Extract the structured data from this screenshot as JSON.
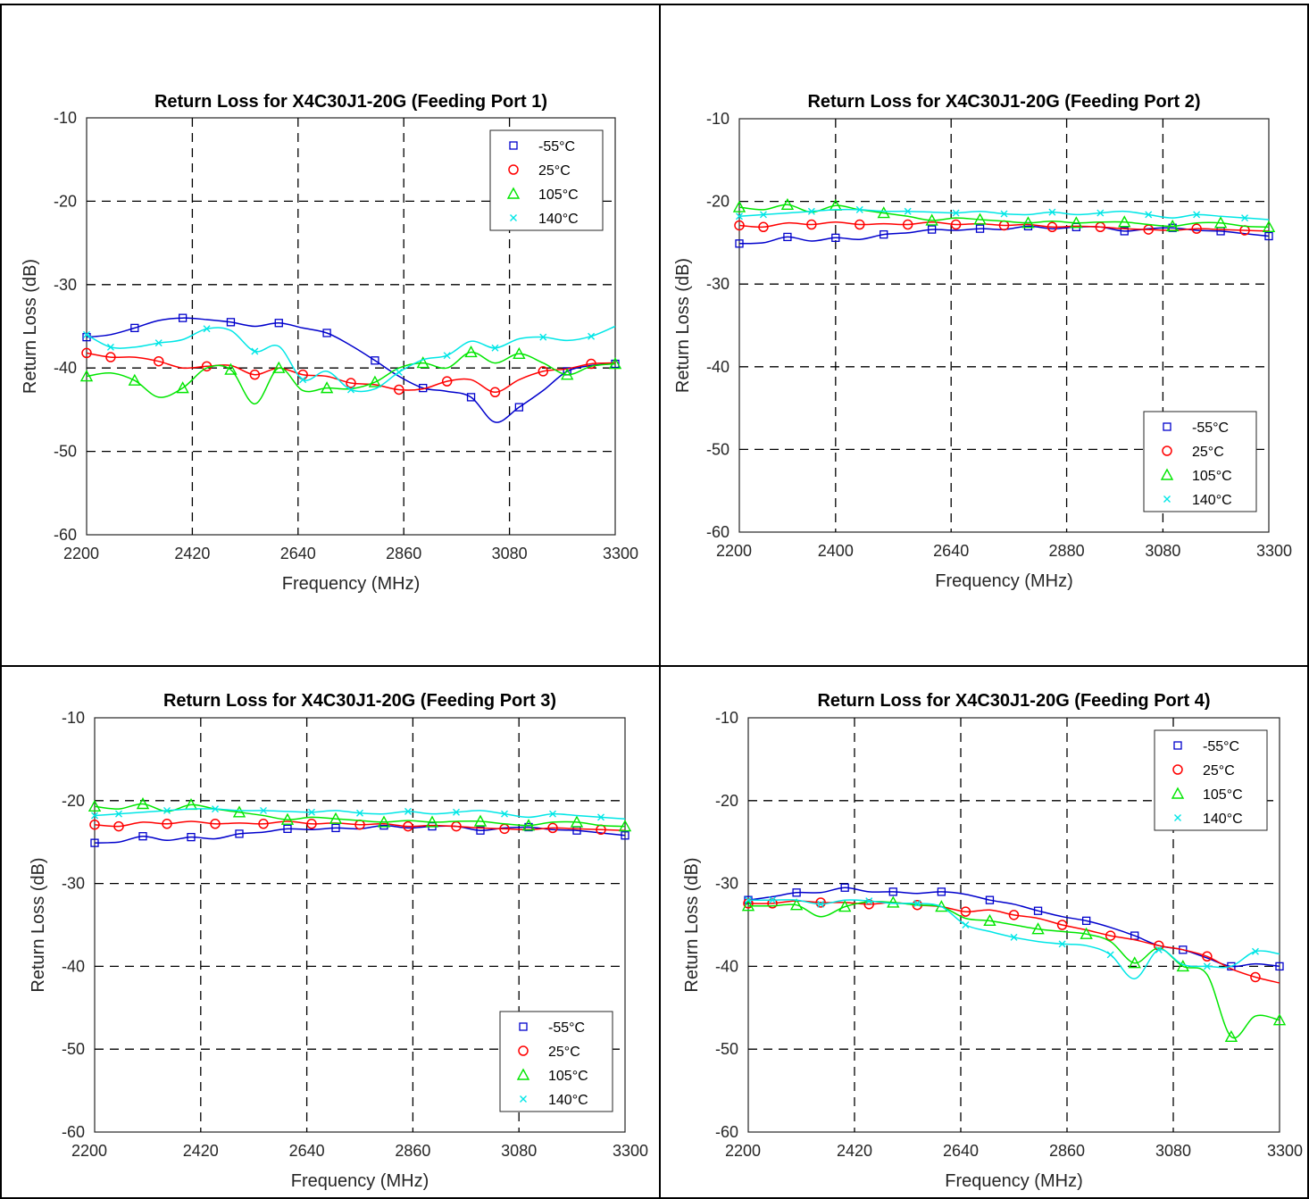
{
  "chart_data": [
    {
      "type": "line",
      "title": "Return Loss for X4C30J1-20G (Feeding Port 1)",
      "xlabel": "Frequency (MHz)",
      "ylabel": "Return Loss (dB)",
      "xlim": [
        2200,
        3300
      ],
      "ylim": [
        -60,
        -10
      ],
      "xticks": [
        2200,
        2420,
        2640,
        2860,
        3080,
        3300
      ],
      "yticks": [
        -10,
        -20,
        -30,
        -40,
        -50,
        -60
      ],
      "grid": true,
      "legend_position": "top-right",
      "x": [
        2200,
        2250,
        2300,
        2350,
        2400,
        2450,
        2500,
        2550,
        2600,
        2650,
        2700,
        2750,
        2800,
        2850,
        2900,
        2950,
        3000,
        3050,
        3100,
        3150,
        3200,
        3250,
        3300
      ],
      "series": [
        {
          "name": "-55°C",
          "color": "#0000cc",
          "marker": "square",
          "values": [
            -36.3,
            -36.0,
            -35.2,
            -34.3,
            -34.0,
            -34.2,
            -34.5,
            -35.0,
            -34.6,
            -35.2,
            -35.8,
            -37.3,
            -39.1,
            -41.0,
            -42.4,
            -42.8,
            -43.5,
            -46.5,
            -44.7,
            -42.7,
            -40.4,
            -39.7,
            -39.5
          ]
        },
        {
          "name": "25°C",
          "color": "#ff0000",
          "marker": "circle",
          "values": [
            -38.2,
            -38.7,
            -38.7,
            -39.2,
            -40.0,
            -39.8,
            -39.7,
            -40.8,
            -40.0,
            -40.8,
            -41.0,
            -41.8,
            -42.0,
            -42.6,
            -42.5,
            -41.6,
            -41.4,
            -42.9,
            -41.4,
            -40.4,
            -40.1,
            -39.5,
            -39.4
          ]
        },
        {
          "name": "105°C",
          "color": "#00e600",
          "marker": "triangle",
          "values": [
            -41.0,
            -40.6,
            -41.5,
            -43.5,
            -42.4,
            -40.0,
            -40.2,
            -44.3,
            -40.0,
            -42.7,
            -42.4,
            -42.5,
            -41.7,
            -40.0,
            -39.4,
            -40.0,
            -38.1,
            -39.4,
            -38.3,
            -39.4,
            -40.8,
            -39.8,
            -39.5
          ]
        },
        {
          "name": "140°C",
          "color": "#00e6e6",
          "marker": "x",
          "values": [
            -36.0,
            -37.5,
            -37.5,
            -37.0,
            -36.6,
            -35.3,
            -35.5,
            -38.0,
            -37.4,
            -41.4,
            -40.4,
            -42.6,
            -42.5,
            -40.5,
            -39.0,
            -38.5,
            -36.8,
            -37.6,
            -36.5,
            -36.3,
            -36.7,
            -36.2,
            -35.0
          ]
        }
      ]
    },
    {
      "type": "line",
      "title": "Return Loss for X4C30J1-20G (Feeding Port 2)",
      "xlabel": "Frequency (MHz)",
      "ylabel": "Return Loss (dB)",
      "xlim": [
        2200,
        3300
      ],
      "ylim": [
        -60,
        -10
      ],
      "xticks": [
        2200,
        2400,
        2640,
        2880,
        3080,
        3300
      ],
      "yticks": [
        -10,
        -20,
        -30,
        -40,
        -50,
        -60
      ],
      "grid": true,
      "legend_position": "bottom-right",
      "x": [
        2200,
        2250,
        2300,
        2350,
        2400,
        2450,
        2500,
        2550,
        2600,
        2650,
        2700,
        2750,
        2800,
        2850,
        2900,
        2950,
        3000,
        3050,
        3100,
        3150,
        3200,
        3250,
        3300
      ],
      "series": [
        {
          "name": "-55°C",
          "color": "#0000cc",
          "marker": "square",
          "values": [
            -25.1,
            -25.0,
            -24.3,
            -24.8,
            -24.4,
            -24.6,
            -24.0,
            -23.8,
            -23.4,
            -23.5,
            -23.3,
            -23.4,
            -23.0,
            -23.3,
            -23.1,
            -23.1,
            -23.6,
            -23.3,
            -23.2,
            -23.5,
            -23.6,
            -23.9,
            -24.2
          ]
        },
        {
          "name": "25°C",
          "color": "#ff0000",
          "marker": "circle",
          "values": [
            -22.9,
            -23.1,
            -22.6,
            -22.8,
            -22.5,
            -22.8,
            -22.7,
            -22.8,
            -22.5,
            -22.8,
            -22.7,
            -22.9,
            -22.8,
            -23.1,
            -23.0,
            -23.1,
            -23.3,
            -23.4,
            -23.5,
            -23.3,
            -23.4,
            -23.5,
            -23.6
          ]
        },
        {
          "name": "105°C",
          "color": "#00e600",
          "marker": "triangle",
          "values": [
            -20.7,
            -21.0,
            -20.4,
            -21.3,
            -20.5,
            -21.0,
            -21.4,
            -21.8,
            -22.3,
            -22.0,
            -22.2,
            -22.4,
            -22.6,
            -22.4,
            -22.6,
            -22.5,
            -22.5,
            -22.8,
            -23.0,
            -22.6,
            -22.6,
            -23.0,
            -23.1
          ]
        },
        {
          "name": "140°C",
          "color": "#00e6e6",
          "marker": "x",
          "values": [
            -21.8,
            -21.6,
            -21.4,
            -21.2,
            -21.0,
            -21.0,
            -21.2,
            -21.2,
            -21.3,
            -21.4,
            -21.2,
            -21.5,
            -21.6,
            -21.3,
            -21.6,
            -21.4,
            -21.2,
            -21.6,
            -22.0,
            -21.6,
            -21.8,
            -22.0,
            -22.2
          ]
        }
      ]
    },
    {
      "type": "line",
      "title": "Return Loss for X4C30J1-20G (Feeding Port 3)",
      "xlabel": "Frequency (MHz)",
      "ylabel": "Return Loss (dB)",
      "xlim": [
        2200,
        3300
      ],
      "ylim": [
        -60,
        -10
      ],
      "xticks": [
        2200,
        2420,
        2640,
        2860,
        3080,
        3300
      ],
      "yticks": [
        -10,
        -20,
        -30,
        -40,
        -50,
        -60
      ],
      "grid": true,
      "legend_position": "bottom-right",
      "x": [
        2200,
        2250,
        2300,
        2350,
        2400,
        2450,
        2500,
        2550,
        2600,
        2650,
        2700,
        2750,
        2800,
        2850,
        2900,
        2950,
        3000,
        3050,
        3100,
        3150,
        3200,
        3250,
        3300
      ],
      "series": [
        {
          "name": "-55°C",
          "color": "#0000cc",
          "marker": "square",
          "values": [
            -25.1,
            -25.0,
            -24.3,
            -24.8,
            -24.4,
            -24.6,
            -24.0,
            -23.8,
            -23.4,
            -23.5,
            -23.3,
            -23.4,
            -23.0,
            -23.3,
            -23.1,
            -23.1,
            -23.6,
            -23.3,
            -23.2,
            -23.5,
            -23.6,
            -23.9,
            -24.2
          ]
        },
        {
          "name": "25°C",
          "color": "#ff0000",
          "marker": "circle",
          "values": [
            -22.9,
            -23.1,
            -22.6,
            -22.8,
            -22.5,
            -22.8,
            -22.7,
            -22.8,
            -22.5,
            -22.8,
            -22.7,
            -22.9,
            -22.8,
            -23.1,
            -23.0,
            -23.1,
            -23.3,
            -23.4,
            -23.5,
            -23.3,
            -23.4,
            -23.5,
            -23.6
          ]
        },
        {
          "name": "105°C",
          "color": "#00e600",
          "marker": "triangle",
          "values": [
            -20.7,
            -21.0,
            -20.4,
            -21.3,
            -20.5,
            -21.0,
            -21.4,
            -21.8,
            -22.3,
            -22.0,
            -22.2,
            -22.4,
            -22.6,
            -22.4,
            -22.6,
            -22.5,
            -22.5,
            -22.8,
            -23.0,
            -22.6,
            -22.6,
            -23.0,
            -23.1
          ]
        },
        {
          "name": "140°C",
          "color": "#00e6e6",
          "marker": "x",
          "values": [
            -21.8,
            -21.6,
            -21.4,
            -21.2,
            -21.0,
            -21.0,
            -21.2,
            -21.2,
            -21.3,
            -21.4,
            -21.2,
            -21.5,
            -21.6,
            -21.3,
            -21.6,
            -21.4,
            -21.2,
            -21.6,
            -22.0,
            -21.6,
            -21.8,
            -22.0,
            -22.2
          ]
        }
      ]
    },
    {
      "type": "line",
      "title": "Return Loss for X4C30J1-20G (Feeding Port 4)",
      "xlabel": "Frequency (MHz)",
      "ylabel": "Return Loss (dB)",
      "xlim": [
        2200,
        3300
      ],
      "ylim": [
        -60,
        -10
      ],
      "xticks": [
        2200,
        2420,
        2640,
        2860,
        3080,
        3300
      ],
      "yticks": [
        -10,
        -20,
        -30,
        -40,
        -50,
        -60
      ],
      "grid": true,
      "legend_position": "top-right",
      "x": [
        2200,
        2250,
        2300,
        2350,
        2400,
        2450,
        2500,
        2550,
        2600,
        2650,
        2700,
        2750,
        2800,
        2850,
        2900,
        2950,
        3000,
        3050,
        3100,
        3150,
        3200,
        3250,
        3300
      ],
      "series": [
        {
          "name": "-55°C",
          "color": "#0000cc",
          "marker": "square",
          "values": [
            -32.0,
            -31.6,
            -31.1,
            -31.1,
            -30.5,
            -31.0,
            -31.0,
            -31.2,
            -31.0,
            -31.3,
            -32.0,
            -32.5,
            -33.3,
            -34.0,
            -34.5,
            -35.3,
            -36.3,
            -37.5,
            -38.0,
            -39.0,
            -40.0,
            -39.7,
            -40.0
          ]
        },
        {
          "name": "25°C",
          "color": "#ff0000",
          "marker": "circle",
          "values": [
            -32.4,
            -32.4,
            -32.1,
            -32.3,
            -32.3,
            -32.5,
            -32.3,
            -32.6,
            -32.8,
            -33.4,
            -33.2,
            -33.8,
            -34.2,
            -35.0,
            -35.6,
            -36.3,
            -36.8,
            -37.5,
            -38.0,
            -38.8,
            -40.3,
            -41.3,
            -42.0
          ]
        },
        {
          "name": "105°C",
          "color": "#00e600",
          "marker": "triangle",
          "values": [
            -32.7,
            -32.7,
            -32.6,
            -34.0,
            -32.8,
            -32.2,
            -32.3,
            -32.6,
            -32.8,
            -34.2,
            -34.5,
            -35.0,
            -35.5,
            -35.8,
            -36.1,
            -37.0,
            -39.6,
            -37.8,
            -40.0,
            -41.0,
            -48.5,
            -46.0,
            -46.5
          ]
        },
        {
          "name": "140°C",
          "color": "#00e6e6",
          "marker": "x",
          "values": [
            -32.0,
            -32.0,
            -32.0,
            -32.5,
            -32.0,
            -32.1,
            -32.4,
            -32.4,
            -32.8,
            -35.0,
            -35.8,
            -36.5,
            -37.0,
            -37.3,
            -37.5,
            -38.6,
            -41.5,
            -38.0,
            -39.8,
            -40.0,
            -40.0,
            -38.2,
            -38.5
          ]
        }
      ]
    }
  ]
}
